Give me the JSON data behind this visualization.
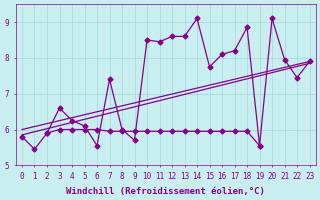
{
  "background_color": "#c8eef0",
  "grid_color": "#aadddd",
  "line1_x": [
    0,
    1,
    2,
    3,
    4,
    5,
    6,
    7,
    8,
    9,
    10,
    11,
    12,
    13,
    14,
    15,
    16,
    17,
    18,
    19,
    20,
    21,
    22,
    23
  ],
  "line1_y": [
    5.8,
    5.45,
    5.9,
    6.6,
    6.25,
    6.1,
    5.55,
    7.4,
    6.0,
    5.7,
    8.5,
    8.45,
    8.6,
    8.6,
    9.1,
    7.75,
    8.1,
    8.2,
    8.85,
    5.55,
    9.1,
    7.95,
    7.45,
    7.9
  ],
  "line2_x": [
    0,
    23
  ],
  "line2_y": [
    5.85,
    7.85
  ],
  "line3_x": [
    0,
    23
  ],
  "line3_y": [
    6.0,
    7.9
  ],
  "line4_x": [
    2,
    3,
    4,
    5,
    6,
    7,
    8,
    9,
    10,
    11,
    12,
    13,
    14,
    15,
    16,
    17,
    18,
    19
  ],
  "line4_y": [
    5.9,
    6.0,
    6.0,
    6.0,
    6.0,
    5.95,
    5.95,
    5.95,
    5.95,
    5.95,
    5.95,
    5.95,
    5.95,
    5.95,
    5.95,
    5.95,
    5.95,
    5.55
  ],
  "line_color": "#880088",
  "marker": "D",
  "marker_size": 2.5,
  "xlim": [
    -0.5,
    23.5
  ],
  "ylim": [
    5.0,
    9.5
  ],
  "yticks": [
    5,
    6,
    7,
    8,
    9
  ],
  "xticks": [
    0,
    1,
    2,
    3,
    4,
    5,
    6,
    7,
    8,
    9,
    10,
    11,
    12,
    13,
    14,
    15,
    16,
    17,
    18,
    19,
    20,
    21,
    22,
    23
  ],
  "xlabel": "Windchill (Refroidissement éolien,°C)",
  "xlabel_fontsize": 6.5,
  "tick_fontsize": 5.5,
  "line_width": 0.9
}
